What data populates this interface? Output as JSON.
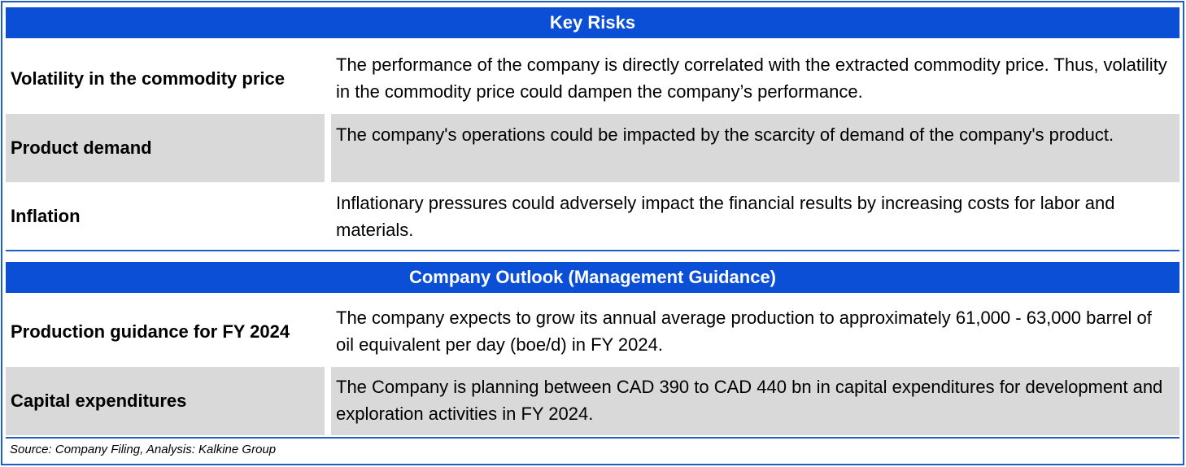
{
  "key_risks": {
    "title": "Key Risks",
    "rows": [
      {
        "label": "Volatility in the commodity price",
        "text": "The performance of the company is directly correlated with the extracted commodity price. Thus, volatility in the commodity price could dampen the company’s performance."
      },
      {
        "label": "Product demand",
        "text": "The company's operations could be impacted by the scarcity of demand of the company's product."
      },
      {
        "label": "Inflation",
        "text": "Inflationary pressures could adversely impact the financial results by increasing costs for labor and materials."
      }
    ]
  },
  "outlook": {
    "title": "Company Outlook (Management Guidance)",
    "rows": [
      {
        "label": "Production guidance for FY 2024",
        "text": "The company expects to grow its annual average production to approximately 61,000 - 63,000 barrel of oil equivalent per day (boe/d) in FY 2024."
      },
      {
        "label": "Capital expenditures",
        "text": "The Company is planning between CAD 390 to CAD 440 bn in capital expenditures for development and exploration activities in FY 2024."
      }
    ]
  },
  "source": "Source: Company Filing, Analysis: Kalkine Group",
  "colors": {
    "header_bg": "#0a4fd6",
    "shaded_row": "#d9d9d9",
    "border": "#1f5fbf"
  }
}
